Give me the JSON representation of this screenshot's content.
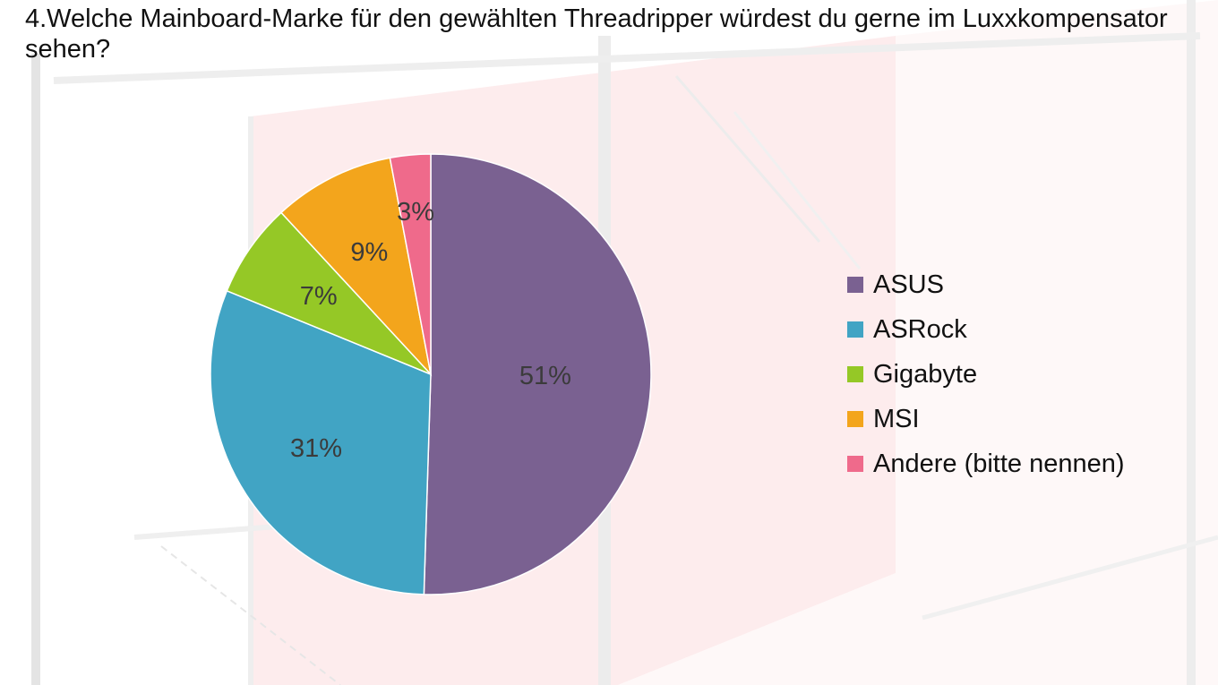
{
  "title": "4.Welche Mainboard-Marke für den gewählten Threadripper würdest du gerne im Luxxkompensator sehen?",
  "chart_data": {
    "type": "pie",
    "title": "4.Welche Mainboard-Marke für den gewählten Threadripper würdest du gerne im Luxxkompensator sehen?",
    "start_angle": "12 o'clock, clockwise",
    "legend_position": "right",
    "slices": [
      {
        "label": "ASUS",
        "value": 51,
        "display": "51%",
        "color": "#7a6191"
      },
      {
        "label": "ASRock",
        "value": 31,
        "display": "31%",
        "color": "#41a4c4"
      },
      {
        "label": "Gigabyte",
        "value": 7,
        "display": "7%",
        "color": "#95c826"
      },
      {
        "label": "MSI",
        "value": 9,
        "display": "9%",
        "color": "#f3a51c"
      },
      {
        "label": "Andere (bitte nennen)",
        "value": 3,
        "display": "3%",
        "color": "#ef6a8b"
      }
    ]
  }
}
